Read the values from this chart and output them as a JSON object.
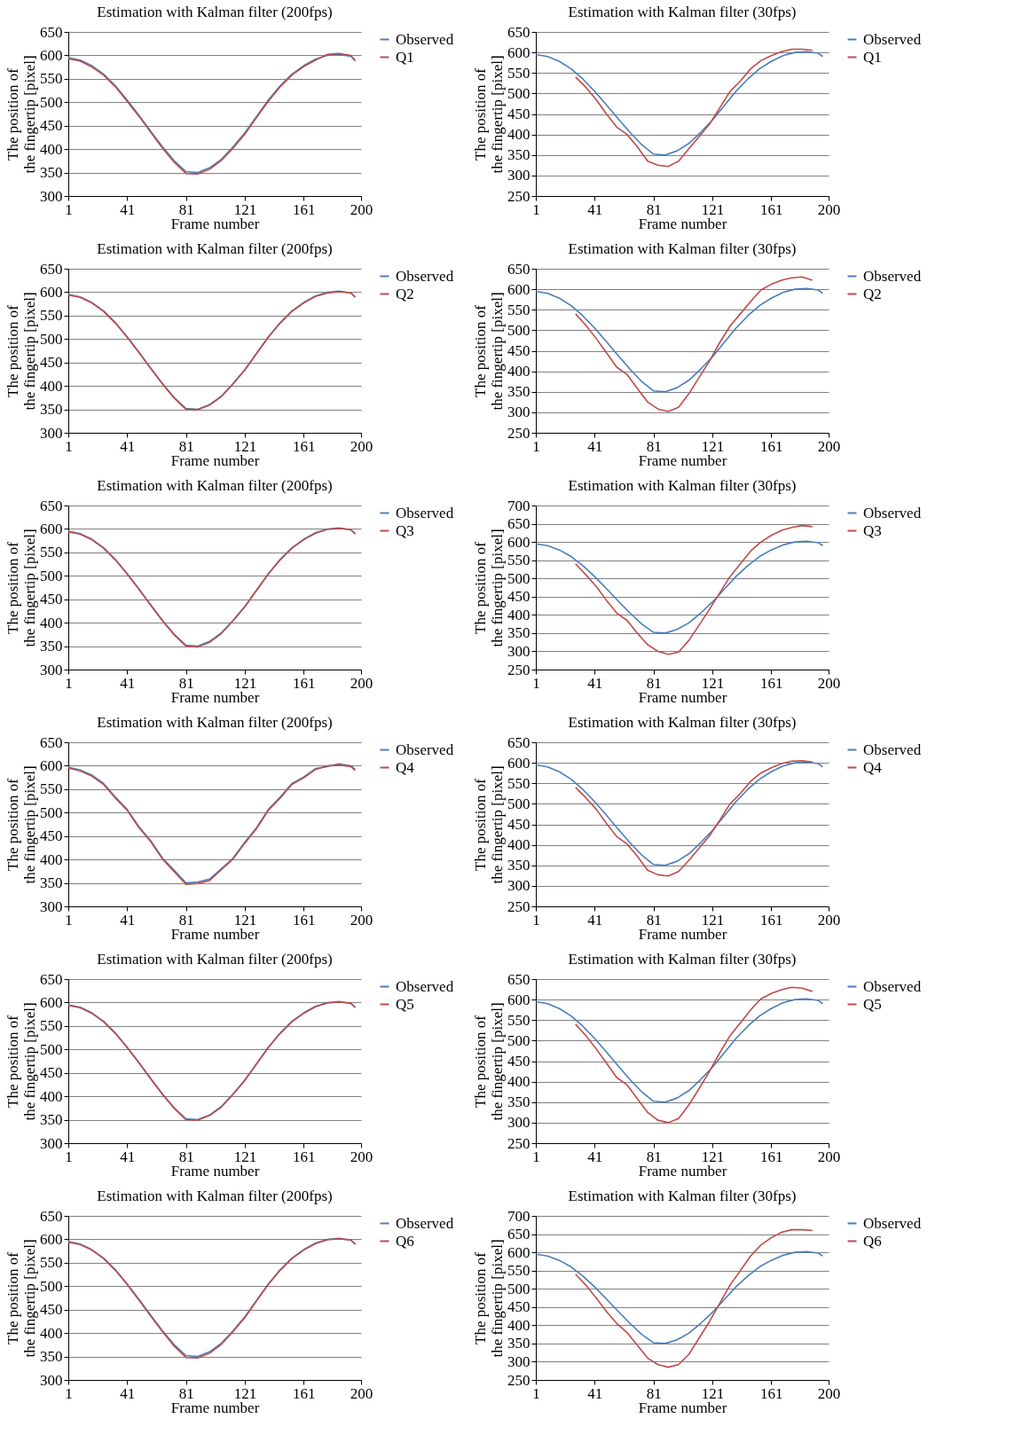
{
  "chart_data": [
    {
      "type": "line",
      "title": "Estimation with Kalman filter (200fps)",
      "xlabel": "Frame number",
      "ylabel": "The position of\nthe fingertip [pixel]",
      "xlim": [
        1,
        200
      ],
      "xticks": [
        1,
        41,
        81,
        121,
        161,
        200
      ],
      "ylim": [
        300,
        650
      ],
      "yticks": [
        300,
        350,
        400,
        450,
        500,
        550,
        600,
        650
      ],
      "grid": "y",
      "legend": "right",
      "series": [
        {
          "name": "Observed",
          "color": "#4a7ebb",
          "x": [
            1,
            9,
            17,
            25,
            33,
            41,
            49,
            57,
            65,
            73,
            81,
            89,
            97,
            105,
            113,
            121,
            129,
            137,
            145,
            153,
            161,
            169,
            177,
            185,
            193,
            196
          ],
          "values": [
            595,
            590,
            578,
            560,
            535,
            505,
            472,
            438,
            405,
            375,
            352,
            350,
            360,
            378,
            405,
            435,
            470,
            505,
            535,
            560,
            578,
            592,
            600,
            602,
            598,
            590
          ]
        },
        {
          "name": "Q1",
          "color": "#be4b48",
          "x": [
            1,
            9,
            17,
            25,
            33,
            41,
            49,
            57,
            65,
            73,
            81,
            89,
            97,
            105,
            113,
            121,
            129,
            137,
            145,
            153,
            161,
            169,
            177,
            185,
            193,
            196
          ],
          "values": [
            593,
            588,
            575,
            558,
            533,
            502,
            470,
            436,
            402,
            372,
            348,
            347,
            357,
            376,
            402,
            432,
            468,
            502,
            533,
            558,
            576,
            590,
            602,
            604,
            600,
            588
          ]
        }
      ]
    },
    {
      "type": "line",
      "title": "Estimation with Kalman filter (30fps)",
      "xlabel": "Frame number",
      "ylabel": "The position of\nthe fingertip [pixel]",
      "xlim": [
        1,
        200
      ],
      "xticks": [
        1,
        41,
        81,
        121,
        161,
        200
      ],
      "ylim": [
        250,
        650
      ],
      "yticks": [
        250,
        300,
        350,
        400,
        450,
        500,
        550,
        600,
        650
      ],
      "grid": "y",
      "legend": "right",
      "series": [
        {
          "name": "Observed",
          "color": "#4a7ebb",
          "x": [
            1,
            9,
            17,
            25,
            33,
            41,
            49,
            57,
            65,
            73,
            81,
            89,
            97,
            105,
            113,
            121,
            129,
            137,
            145,
            153,
            161,
            169,
            177,
            185,
            193,
            196
          ],
          "values": [
            595,
            590,
            578,
            560,
            535,
            505,
            472,
            438,
            405,
            375,
            352,
            350,
            360,
            378,
            405,
            435,
            470,
            505,
            535,
            560,
            578,
            592,
            600,
            602,
            598,
            590
          ]
        },
        {
          "name": "Q1",
          "color": "#be4b48",
          "x": [
            28,
            35,
            42,
            49,
            56,
            63,
            70,
            77,
            84,
            91,
            98,
            105,
            112,
            119,
            126,
            133,
            140,
            147,
            154,
            161,
            168,
            175,
            182,
            189
          ],
          "values": [
            540,
            515,
            485,
            450,
            418,
            400,
            370,
            335,
            325,
            322,
            335,
            365,
            395,
            425,
            465,
            505,
            530,
            560,
            580,
            592,
            602,
            608,
            608,
            605
          ]
        }
      ]
    },
    {
      "type": "line",
      "title": "Estimation with Kalman filter (200fps)",
      "xlabel": "Frame number",
      "ylabel": "The position of\nthe fingertip [pixel]",
      "xlim": [
        1,
        200
      ],
      "xticks": [
        1,
        41,
        81,
        121,
        161,
        200
      ],
      "ylim": [
        300,
        650
      ],
      "yticks": [
        300,
        350,
        400,
        450,
        500,
        550,
        600,
        650
      ],
      "grid": "y",
      "legend": "right",
      "series": [
        {
          "name": "Observed",
          "color": "#4a7ebb",
          "x": [
            1,
            9,
            17,
            25,
            33,
            41,
            49,
            57,
            65,
            73,
            81,
            89,
            97,
            105,
            113,
            121,
            129,
            137,
            145,
            153,
            161,
            169,
            177,
            185,
            193,
            196
          ],
          "values": [
            595,
            590,
            578,
            560,
            535,
            505,
            472,
            438,
            405,
            375,
            352,
            350,
            360,
            378,
            405,
            435,
            470,
            505,
            535,
            560,
            578,
            592,
            600,
            602,
            598,
            590
          ]
        },
        {
          "name": "Q2",
          "color": "#be4b48",
          "x": [
            1,
            9,
            17,
            25,
            33,
            41,
            49,
            57,
            65,
            73,
            81,
            89,
            97,
            105,
            113,
            121,
            129,
            137,
            145,
            153,
            161,
            169,
            177,
            185,
            193,
            196
          ],
          "values": [
            594,
            589,
            577,
            559,
            534,
            504,
            471,
            437,
            404,
            374,
            350,
            349,
            359,
            377,
            404,
            434,
            469,
            504,
            534,
            559,
            577,
            591,
            598,
            601,
            599,
            589
          ]
        }
      ]
    },
    {
      "type": "line",
      "title": "Estimation with Kalman filter (30fps)",
      "xlabel": "Frame number",
      "ylabel": "The position of\nthe fingertip [pixel]",
      "xlim": [
        1,
        200
      ],
      "xticks": [
        1,
        41,
        81,
        121,
        161,
        200
      ],
      "ylim": [
        250,
        650
      ],
      "yticks": [
        250,
        300,
        350,
        400,
        450,
        500,
        550,
        600,
        650
      ],
      "grid": "y",
      "legend": "right",
      "series": [
        {
          "name": "Observed",
          "color": "#4a7ebb",
          "x": [
            1,
            9,
            17,
            25,
            33,
            41,
            49,
            57,
            65,
            73,
            81,
            89,
            97,
            105,
            113,
            121,
            129,
            137,
            145,
            153,
            161,
            169,
            177,
            185,
            193,
            196
          ],
          "values": [
            595,
            590,
            578,
            560,
            535,
            505,
            472,
            438,
            405,
            375,
            352,
            350,
            360,
            378,
            405,
            435,
            470,
            505,
            535,
            560,
            578,
            592,
            600,
            602,
            598,
            590
          ]
        },
        {
          "name": "Q2",
          "color": "#be4b48",
          "x": [
            28,
            35,
            42,
            49,
            56,
            63,
            70,
            77,
            84,
            91,
            98,
            105,
            112,
            119,
            126,
            133,
            140,
            147,
            154,
            161,
            168,
            175,
            182,
            189
          ],
          "values": [
            540,
            512,
            480,
            445,
            410,
            392,
            358,
            325,
            308,
            302,
            312,
            345,
            385,
            425,
            470,
            510,
            540,
            570,
            598,
            612,
            622,
            628,
            630,
            622
          ]
        }
      ]
    },
    {
      "type": "line",
      "title": "Estimation with Kalman filter (200fps)",
      "xlabel": "Frame number",
      "ylabel": "The position of\nthe fingertip [pixel]",
      "xlim": [
        1,
        200
      ],
      "xticks": [
        1,
        41,
        81,
        121,
        161,
        200
      ],
      "ylim": [
        300,
        650
      ],
      "yticks": [
        300,
        350,
        400,
        450,
        500,
        550,
        600,
        650
      ],
      "grid": "y",
      "legend": "right",
      "series": [
        {
          "name": "Observed",
          "color": "#4a7ebb",
          "x": [
            1,
            9,
            17,
            25,
            33,
            41,
            49,
            57,
            65,
            73,
            81,
            89,
            97,
            105,
            113,
            121,
            129,
            137,
            145,
            153,
            161,
            169,
            177,
            185,
            193,
            196
          ],
          "values": [
            595,
            590,
            578,
            560,
            535,
            505,
            472,
            438,
            405,
            375,
            352,
            350,
            360,
            378,
            405,
            435,
            470,
            505,
            535,
            560,
            578,
            592,
            600,
            602,
            598,
            590
          ]
        },
        {
          "name": "Q3",
          "color": "#be4b48",
          "x": [
            1,
            9,
            17,
            25,
            33,
            41,
            49,
            57,
            65,
            73,
            81,
            89,
            97,
            105,
            113,
            121,
            129,
            137,
            145,
            153,
            161,
            169,
            177,
            185,
            193,
            196
          ],
          "values": [
            594,
            589,
            577,
            559,
            534,
            504,
            471,
            437,
            404,
            374,
            350,
            348,
            358,
            377,
            404,
            434,
            469,
            504,
            534,
            559,
            577,
            591,
            599,
            601,
            599,
            589
          ]
        }
      ]
    },
    {
      "type": "line",
      "title": "Estimation with Kalman filter (30fps)",
      "xlabel": "Frame number",
      "ylabel": "The position of\nthe fingertip [pixel]",
      "xlim": [
        1,
        200
      ],
      "xticks": [
        1,
        41,
        81,
        121,
        161,
        200
      ],
      "ylim": [
        250,
        700
      ],
      "yticks": [
        250,
        300,
        350,
        400,
        450,
        500,
        550,
        600,
        650,
        700
      ],
      "grid": "y",
      "legend": "right",
      "series": [
        {
          "name": "Observed",
          "color": "#4a7ebb",
          "x": [
            1,
            9,
            17,
            25,
            33,
            41,
            49,
            57,
            65,
            73,
            81,
            89,
            97,
            105,
            113,
            121,
            129,
            137,
            145,
            153,
            161,
            169,
            177,
            185,
            193,
            196
          ],
          "values": [
            595,
            590,
            578,
            560,
            535,
            505,
            472,
            438,
            405,
            375,
            352,
            350,
            360,
            378,
            405,
            435,
            470,
            505,
            535,
            560,
            578,
            592,
            600,
            602,
            598,
            590
          ]
        },
        {
          "name": "Q3",
          "color": "#be4b48",
          "x": [
            28,
            35,
            42,
            49,
            56,
            63,
            70,
            77,
            84,
            91,
            98,
            105,
            112,
            119,
            126,
            133,
            140,
            147,
            154,
            161,
            168,
            175,
            182,
            189
          ],
          "values": [
            540,
            510,
            478,
            440,
            405,
            385,
            350,
            318,
            300,
            292,
            298,
            330,
            372,
            415,
            460,
            505,
            540,
            575,
            600,
            618,
            632,
            640,
            645,
            642
          ]
        }
      ]
    },
    {
      "type": "line",
      "title": "Estimation with Kalman filter (200fps)",
      "xlabel": "Frame number",
      "ylabel": "The position of\nthe fingertip [pixel]",
      "xlim": [
        1,
        200
      ],
      "xticks": [
        1,
        41,
        81,
        121,
        161,
        200
      ],
      "ylim": [
        300,
        650
      ],
      "yticks": [
        300,
        350,
        400,
        450,
        500,
        550,
        600,
        650
      ],
      "grid": "y",
      "legend": "right",
      "series": [
        {
          "name": "Observed",
          "color": "#4a7ebb",
          "x": [
            1,
            9,
            17,
            25,
            33,
            41,
            49,
            57,
            65,
            73,
            81,
            89,
            97,
            105,
            113,
            121,
            129,
            137,
            145,
            153,
            161,
            169,
            177,
            185,
            193,
            196
          ],
          "values": [
            597,
            591,
            580,
            562,
            533,
            507,
            470,
            440,
            403,
            377,
            350,
            352,
            358,
            380,
            403,
            437,
            468,
            507,
            533,
            562,
            576,
            594,
            598,
            604,
            600,
            592
          ]
        },
        {
          "name": "Q4",
          "color": "#be4b48",
          "x": [
            1,
            9,
            17,
            25,
            33,
            41,
            49,
            57,
            65,
            73,
            81,
            89,
            97,
            105,
            113,
            121,
            129,
            137,
            145,
            153,
            161,
            169,
            177,
            185,
            193,
            196
          ],
          "values": [
            595,
            589,
            578,
            560,
            531,
            505,
            468,
            438,
            401,
            374,
            347,
            349,
            355,
            378,
            401,
            435,
            466,
            505,
            531,
            560,
            574,
            592,
            600,
            602,
            598,
            590
          ]
        }
      ]
    },
    {
      "type": "line",
      "title": "Estimation with Kalman filter (30fps)",
      "xlabel": "Frame number",
      "ylabel": "The position of\nthe fingertip [pixel]",
      "xlim": [
        1,
        200
      ],
      "xticks": [
        1,
        41,
        81,
        121,
        161,
        200
      ],
      "ylim": [
        250,
        650
      ],
      "yticks": [
        250,
        300,
        350,
        400,
        450,
        500,
        550,
        600,
        650
      ],
      "grid": "y",
      "legend": "right",
      "series": [
        {
          "name": "Observed",
          "color": "#4a7ebb",
          "x": [
            1,
            9,
            17,
            25,
            33,
            41,
            49,
            57,
            65,
            73,
            81,
            89,
            97,
            105,
            113,
            121,
            129,
            137,
            145,
            153,
            161,
            169,
            177,
            185,
            193,
            196
          ],
          "values": [
            595,
            590,
            578,
            560,
            535,
            505,
            472,
            438,
            405,
            375,
            352,
            350,
            360,
            378,
            405,
            435,
            470,
            505,
            535,
            560,
            578,
            592,
            600,
            602,
            598,
            590
          ]
        },
        {
          "name": "Q4",
          "color": "#be4b48",
          "x": [
            28,
            35,
            42,
            49,
            56,
            63,
            70,
            77,
            84,
            91,
            98,
            105,
            112,
            119,
            126,
            133,
            140,
            147,
            154,
            161,
            168,
            175,
            182,
            189
          ],
          "values": [
            540,
            515,
            487,
            452,
            420,
            402,
            372,
            338,
            327,
            324,
            335,
            362,
            392,
            422,
            460,
            500,
            525,
            555,
            575,
            588,
            598,
            604,
            605,
            602
          ]
        }
      ]
    },
    {
      "type": "line",
      "title": "Estimation with Kalman filter (200fps)",
      "xlabel": "Frame number",
      "ylabel": "The position of\nthe fingertip [pixel]",
      "xlim": [
        1,
        200
      ],
      "xticks": [
        1,
        41,
        81,
        121,
        161,
        200
      ],
      "ylim": [
        300,
        650
      ],
      "yticks": [
        300,
        350,
        400,
        450,
        500,
        550,
        600,
        650
      ],
      "grid": "y",
      "legend": "right",
      "series": [
        {
          "name": "Observed",
          "color": "#4a7ebb",
          "x": [
            1,
            9,
            17,
            25,
            33,
            41,
            49,
            57,
            65,
            73,
            81,
            89,
            97,
            105,
            113,
            121,
            129,
            137,
            145,
            153,
            161,
            169,
            177,
            185,
            193,
            196
          ],
          "values": [
            595,
            590,
            578,
            560,
            535,
            505,
            472,
            438,
            405,
            375,
            352,
            350,
            360,
            378,
            405,
            435,
            470,
            505,
            535,
            560,
            578,
            592,
            600,
            602,
            598,
            590
          ]
        },
        {
          "name": "Q5",
          "color": "#be4b48",
          "x": [
            1,
            9,
            17,
            25,
            33,
            41,
            49,
            57,
            65,
            73,
            81,
            89,
            97,
            105,
            113,
            121,
            129,
            137,
            145,
            153,
            161,
            169,
            177,
            185,
            193,
            196
          ],
          "values": [
            594,
            589,
            577,
            559,
            534,
            504,
            471,
            437,
            404,
            374,
            350,
            349,
            359,
            377,
            404,
            434,
            469,
            504,
            534,
            559,
            577,
            591,
            599,
            601,
            599,
            589
          ]
        }
      ]
    },
    {
      "type": "line",
      "title": "Estimation with Kalman filter (30fps)",
      "xlabel": "Frame number",
      "ylabel": "The position of\nthe fingertip [pixel]",
      "xlim": [
        1,
        200
      ],
      "xticks": [
        1,
        41,
        81,
        121,
        161,
        200
      ],
      "ylim": [
        250,
        650
      ],
      "yticks": [
        250,
        300,
        350,
        400,
        450,
        500,
        550,
        600,
        650
      ],
      "grid": "y",
      "legend": "right",
      "series": [
        {
          "name": "Observed",
          "color": "#4a7ebb",
          "x": [
            1,
            9,
            17,
            25,
            33,
            41,
            49,
            57,
            65,
            73,
            81,
            89,
            97,
            105,
            113,
            121,
            129,
            137,
            145,
            153,
            161,
            169,
            177,
            185,
            193,
            196
          ],
          "values": [
            595,
            590,
            578,
            560,
            535,
            505,
            472,
            438,
            405,
            375,
            352,
            350,
            360,
            378,
            405,
            435,
            470,
            505,
            535,
            560,
            578,
            592,
            600,
            602,
            598,
            590
          ]
        },
        {
          "name": "Q5",
          "color": "#be4b48",
          "x": [
            28,
            35,
            42,
            49,
            56,
            63,
            70,
            77,
            84,
            91,
            98,
            105,
            112,
            119,
            126,
            133,
            140,
            147,
            154,
            161,
            168,
            175,
            182,
            189
          ],
          "values": [
            540,
            512,
            480,
            445,
            410,
            392,
            358,
            325,
            306,
            300,
            310,
            343,
            383,
            425,
            470,
            512,
            543,
            575,
            602,
            615,
            624,
            630,
            628,
            620
          ]
        }
      ]
    },
    {
      "type": "line",
      "title": "Estimation with Kalman filter (200fps)",
      "xlabel": "Frame number",
      "ylabel": "The position of\nthe fingertip [pixel]",
      "xlim": [
        1,
        200
      ],
      "xticks": [
        1,
        41,
        81,
        121,
        161,
        200
      ],
      "ylim": [
        300,
        650
      ],
      "yticks": [
        300,
        350,
        400,
        450,
        500,
        550,
        600,
        650
      ],
      "grid": "y",
      "legend": "right",
      "series": [
        {
          "name": "Observed",
          "color": "#4a7ebb",
          "x": [
            1,
            9,
            17,
            25,
            33,
            41,
            49,
            57,
            65,
            73,
            81,
            89,
            97,
            105,
            113,
            121,
            129,
            137,
            145,
            153,
            161,
            169,
            177,
            185,
            193,
            196
          ],
          "values": [
            595,
            590,
            578,
            560,
            535,
            505,
            472,
            438,
            405,
            375,
            352,
            350,
            360,
            378,
            405,
            435,
            470,
            505,
            535,
            560,
            578,
            592,
            600,
            602,
            598,
            590
          ]
        },
        {
          "name": "Q6",
          "color": "#be4b48",
          "x": [
            1,
            9,
            17,
            25,
            33,
            41,
            49,
            57,
            65,
            73,
            81,
            89,
            97,
            105,
            113,
            121,
            129,
            137,
            145,
            153,
            161,
            169,
            177,
            185,
            193,
            196
          ],
          "values": [
            594,
            589,
            577,
            559,
            534,
            504,
            470,
            436,
            403,
            372,
            348,
            347,
            357,
            376,
            403,
            433,
            469,
            504,
            534,
            559,
            577,
            591,
            599,
            601,
            599,
            589
          ]
        }
      ]
    },
    {
      "type": "line",
      "title": "Estimation with Kalman filter (30fps)",
      "xlabel": "Frame number",
      "ylabel": "The position of\nthe fingertip [pixel]",
      "xlim": [
        1,
        200
      ],
      "xticks": [
        1,
        41,
        81,
        121,
        161,
        200
      ],
      "ylim": [
        250,
        700
      ],
      "yticks": [
        250,
        300,
        350,
        400,
        450,
        500,
        550,
        600,
        650,
        700
      ],
      "grid": "y",
      "legend": "right",
      "series": [
        {
          "name": "Observed",
          "color": "#4a7ebb",
          "x": [
            1,
            9,
            17,
            25,
            33,
            41,
            49,
            57,
            65,
            73,
            81,
            89,
            97,
            105,
            113,
            121,
            129,
            137,
            145,
            153,
            161,
            169,
            177,
            185,
            193,
            196
          ],
          "values": [
            595,
            590,
            578,
            560,
            535,
            505,
            472,
            438,
            405,
            375,
            352,
            350,
            360,
            378,
            405,
            435,
            470,
            505,
            535,
            560,
            578,
            592,
            600,
            602,
            598,
            590
          ]
        },
        {
          "name": "Q6",
          "color": "#be4b48",
          "x": [
            28,
            35,
            42,
            49,
            56,
            63,
            70,
            77,
            84,
            91,
            98,
            105,
            112,
            119,
            126,
            133,
            140,
            147,
            154,
            161,
            168,
            175,
            182,
            189
          ],
          "values": [
            540,
            510,
            475,
            438,
            405,
            380,
            345,
            310,
            292,
            285,
            292,
            320,
            365,
            410,
            460,
            510,
            550,
            590,
            620,
            640,
            655,
            662,
            662,
            660
          ]
        }
      ]
    }
  ]
}
